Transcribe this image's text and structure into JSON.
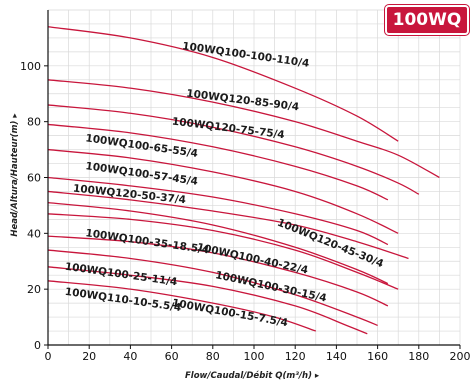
{
  "badge": {
    "text": "100WQ"
  },
  "chart_data": {
    "type": "line",
    "title": "",
    "xlabel": "Flow/Caudal/Débit Q(m³/h) ▸",
    "ylabel": "Head/Altura/Hauteur(m) ▸",
    "xlim": [
      0,
      200
    ],
    "ylim": [
      0,
      120
    ],
    "x_ticks": [
      0,
      20,
      40,
      60,
      80,
      100,
      120,
      140,
      160,
      180,
      200
    ],
    "y_ticks": [
      0,
      20,
      40,
      60,
      80,
      100
    ],
    "grid": true,
    "colors": {
      "curve": "#c8163c",
      "grid": "#d9d9d9",
      "axis": "#111111"
    },
    "series": [
      {
        "name": "100WQ100-100-110/4",
        "x": [
          0,
          40,
          80,
          120,
          150,
          170
        ],
        "y": [
          114,
          110,
          103,
          92,
          82,
          73
        ]
      },
      {
        "name": "100WQ120-85-90/4",
        "x": [
          0,
          40,
          80,
          120,
          150,
          170,
          190
        ],
        "y": [
          95,
          92,
          87,
          80,
          73,
          68,
          60
        ]
      },
      {
        "name": "100WQ120-75-75/4",
        "x": [
          0,
          40,
          80,
          120,
          150,
          170,
          180
        ],
        "y": [
          86,
          83,
          78,
          71,
          64,
          58,
          54
        ]
      },
      {
        "name": "100WQ100-65-55/4",
        "x": [
          0,
          40,
          80,
          120,
          150,
          165
        ],
        "y": [
          79,
          76,
          71,
          64,
          57,
          52
        ]
      },
      {
        "name": "100WQ100-57-45/4",
        "x": [
          0,
          40,
          80,
          120,
          150,
          170
        ],
        "y": [
          70,
          67,
          62,
          55,
          47,
          40
        ]
      },
      {
        "name": "100WQ120-50-37/4",
        "x": [
          0,
          40,
          80,
          120,
          150,
          165
        ],
        "y": [
          60,
          57,
          53,
          47,
          41,
          36
        ]
      },
      {
        "name": "100WQ120-45-30/4",
        "x": [
          0,
          40,
          80,
          120,
          150,
          175
        ],
        "y": [
          55,
          52,
          48,
          43,
          37,
          31
        ]
      },
      {
        "name": "100WQ100-35-18.5/4",
        "x": [
          0,
          40,
          80,
          120,
          150,
          165
        ],
        "y": [
          51,
          48,
          43,
          35,
          27,
          22
        ]
      },
      {
        "name": "100WQ100-40-22/4",
        "x": [
          0,
          40,
          80,
          120,
          150,
          170
        ],
        "y": [
          47,
          45,
          41,
          34,
          26,
          20
        ]
      },
      {
        "name": "100WQ100-30-15/4",
        "x": [
          0,
          40,
          80,
          120,
          150,
          165
        ],
        "y": [
          39,
          37,
          33,
          26,
          19,
          14
        ]
      },
      {
        "name": "100WQ100-25-11/4",
        "x": [
          0,
          40,
          80,
          120,
          150,
          160
        ],
        "y": [
          34,
          31,
          26,
          18,
          10,
          7
        ]
      },
      {
        "name": "100WQ100-15-7.5/4",
        "x": [
          0,
          40,
          80,
          120,
          145,
          155
        ],
        "y": [
          28,
          25,
          21,
          14,
          7,
          4
        ]
      },
      {
        "name": "100WQ110-10-5.5/4",
        "x": [
          0,
          40,
          80,
          110,
          130
        ],
        "y": [
          23,
          20,
          15,
          10,
          5
        ]
      }
    ],
    "labels": [
      {
        "text": "100WQ100-100-110/4",
        "x": 65,
        "y": 106,
        "angle": 8
      },
      {
        "text": "100WQ120-85-90/4",
        "x": 67,
        "y": 89,
        "angle": 7
      },
      {
        "text": "100WQ120-75-75/4",
        "x": 60,
        "y": 79,
        "angle": 7
      },
      {
        "text": "100WQ100-65-55/4",
        "x": 18,
        "y": 73,
        "angle": 8
      },
      {
        "text": "100WQ100-57-45/4",
        "x": 18,
        "y": 63,
        "angle": 8
      },
      {
        "text": "100WQ120-50-37/4",
        "x": 12,
        "y": 55,
        "angle": 6
      },
      {
        "text": "100WQ120-45-30/4",
        "x": 111,
        "y": 43,
        "angle": 22
      },
      {
        "text": "100WQ100-35-18.5/4",
        "x": 18,
        "y": 39,
        "angle": 8
      },
      {
        "text": "100WQ100-40-22/4",
        "x": 72,
        "y": 34,
        "angle": 12
      },
      {
        "text": "100WQ100-30-15/4",
        "x": 81,
        "y": 24,
        "angle": 12
      },
      {
        "text": "100WQ100-25-11/4",
        "x": 8,
        "y": 27,
        "angle": 8
      },
      {
        "text": "100WQ100-15-7.5/4",
        "x": 60,
        "y": 14,
        "angle": 10
      },
      {
        "text": "100WQ110-10-5.5/4",
        "x": 8,
        "y": 18,
        "angle": 8
      }
    ]
  }
}
